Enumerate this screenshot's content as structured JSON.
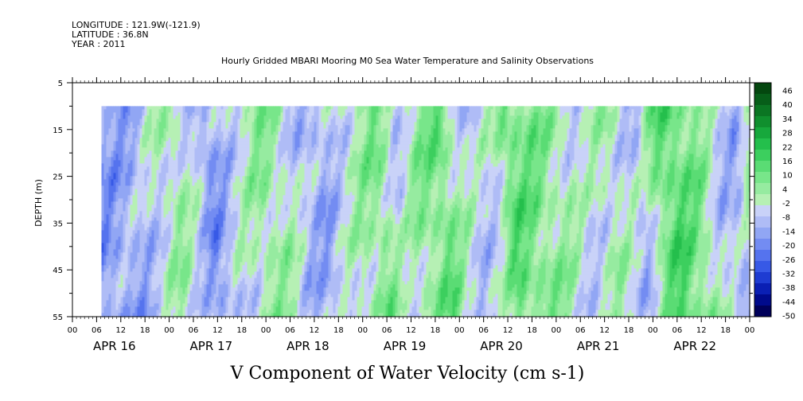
{
  "chart_data": {
    "type": "heatmap",
    "header": {
      "longitude": "LONGITUDE : 121.9W(-121.9)",
      "latitude": "LATITUDE : 36.8N",
      "year": "YEAR : 2011"
    },
    "title": "Hourly Gridded MBARI Mooring M0 Sea Water Temperature and Salinity Observations",
    "xlabel": "V Component of Water Velocity (cm s-1)",
    "ylabel": "DEPTH (m)",
    "y_ticks": [
      5,
      15,
      25,
      35,
      45,
      55
    ],
    "ylim": [
      5,
      55
    ],
    "hour_labels": [
      "00",
      "06",
      "12",
      "18",
      "00",
      "06",
      "12",
      "18",
      "00",
      "06",
      "12",
      "18",
      "00",
      "06",
      "12",
      "18",
      "00",
      "06",
      "12",
      "18",
      "00",
      "06",
      "12",
      "18",
      "00",
      "06",
      "12",
      "18",
      "00"
    ],
    "date_labels": [
      "APR 16",
      "APR 17",
      "APR 18",
      "APR 19",
      "APR 20",
      "APR 21",
      "APR 22"
    ],
    "x_range_days": 7,
    "data_start_day": 0.3,
    "data_depth_range": [
      10,
      55
    ],
    "colorbar": {
      "labels": [
        46,
        40,
        34,
        28,
        22,
        16,
        10,
        4,
        -2,
        -8,
        -14,
        -20,
        -26,
        -32,
        -38,
        -44,
        -50
      ],
      "min": -50,
      "max": 52,
      "colors": [
        "#00005a",
        "#000a8c",
        "#0a1fb4",
        "#1e3cd2",
        "#3759e6",
        "#5573ee",
        "#738cf2",
        "#91a6f4",
        "#afbcf6",
        "#c9d2f8",
        "#b6f0b4",
        "#96eba0",
        "#78e68a",
        "#5adc74",
        "#3ccf5e",
        "#24bf4c",
        "#17a83c",
        "#108f2e",
        "#0b7623",
        "#075e19",
        "#04470f"
      ]
    },
    "field_profile": [
      {
        "day": 0.3,
        "v": -14
      },
      {
        "day": 0.6,
        "v": -10
      },
      {
        "day": 0.8,
        "v": -2
      },
      {
        "day": 1.0,
        "v": 4
      },
      {
        "day": 1.2,
        "v": -6
      },
      {
        "day": 1.35,
        "v": -16
      },
      {
        "day": 1.6,
        "v": -4
      },
      {
        "day": 1.9,
        "v": 6
      },
      {
        "day": 2.1,
        "v": 2
      },
      {
        "day": 2.3,
        "v": -8
      },
      {
        "day": 2.5,
        "v": -12
      },
      {
        "day": 2.7,
        "v": -4
      },
      {
        "day": 2.9,
        "v": 4
      },
      {
        "day": 3.1,
        "v": 8
      },
      {
        "day": 3.3,
        "v": -4
      },
      {
        "day": 3.5,
        "v": 6
      },
      {
        "day": 3.75,
        "v": 12
      },
      {
        "day": 3.9,
        "v": 2
      },
      {
        "day": 4.1,
        "v": -6
      },
      {
        "day": 4.3,
        "v": -2
      },
      {
        "day": 4.45,
        "v": 14
      },
      {
        "day": 4.7,
        "v": 10
      },
      {
        "day": 4.95,
        "v": 4
      },
      {
        "day": 5.2,
        "v": -4
      },
      {
        "day": 5.5,
        "v": 2
      },
      {
        "day": 5.8,
        "v": -8
      },
      {
        "day": 6.0,
        "v": 12
      },
      {
        "day": 6.15,
        "v": 16
      },
      {
        "day": 6.4,
        "v": 8
      },
      {
        "day": 6.6,
        "v": -6
      },
      {
        "day": 6.8,
        "v": -10
      },
      {
        "day": 7.0,
        "v": 8
      }
    ]
  }
}
